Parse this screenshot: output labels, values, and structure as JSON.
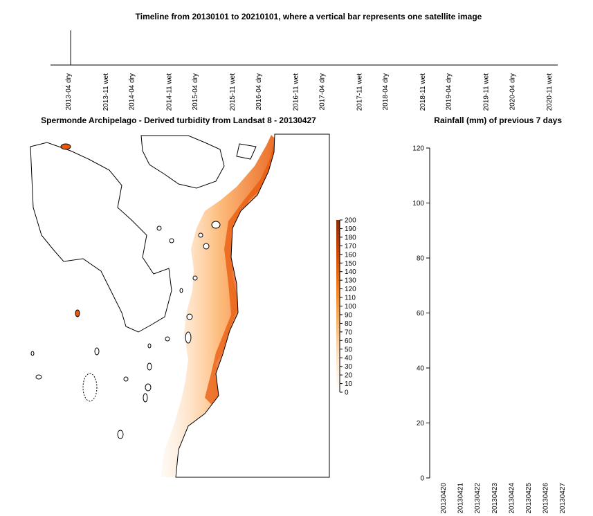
{
  "chart_data": [
    {
      "type": "timeline",
      "title": "Timeline from 20130101 to 20210101, where a vertical bar represents one satellite image",
      "x_range": [
        "2013-01-01",
        "2021-01-01"
      ],
      "tick_labels": [
        {
          "date": "2013-04-15",
          "label": "2013-04 dry"
        },
        {
          "date": "2013-11-15",
          "label": "2013-11 wet"
        },
        {
          "date": "2014-04-15",
          "label": "2014-04 dry"
        },
        {
          "date": "2014-11-15",
          "label": "2014-11 wet"
        },
        {
          "date": "2015-04-15",
          "label": "2015-04 dry"
        },
        {
          "date": "2015-11-15",
          "label": "2015-11 wet"
        },
        {
          "date": "2016-04-15",
          "label": "2016-04 dry"
        },
        {
          "date": "2016-11-15",
          "label": "2016-11 wet"
        },
        {
          "date": "2017-04-15",
          "label": "2017-04 dry"
        },
        {
          "date": "2017-11-15",
          "label": "2017-11 wet"
        },
        {
          "date": "2018-04-15",
          "label": "2018-04 dry"
        },
        {
          "date": "2018-11-15",
          "label": "2018-11 wet"
        },
        {
          "date": "2019-04-15",
          "label": "2019-04 dry"
        },
        {
          "date": "2019-11-15",
          "label": "2019-11 wet"
        },
        {
          "date": "2020-04-15",
          "label": "2020-04 dry"
        },
        {
          "date": "2020-11-15",
          "label": "2020-11 wet"
        }
      ],
      "images": [
        "2013-04-27"
      ]
    },
    {
      "type": "heatmap",
      "title": "Spermonde Archipelago - Derived turbidity from Landsat 8 - 20130427",
      "colorbar": {
        "min": 0,
        "max": 200,
        "step": 10,
        "ticks": [
          "0",
          "10",
          "20",
          "30",
          "40",
          "50",
          "60",
          "70",
          "80",
          "90",
          "100",
          "110",
          "120",
          "130",
          "140",
          "150",
          "160",
          "170",
          "180",
          "190",
          "200"
        ],
        "colors": [
          "#ffffff",
          "#fde3c8",
          "#fdb56e",
          "#f5801c",
          "#d94801",
          "#8c2d04"
        ]
      }
    },
    {
      "type": "bar",
      "title": "Rainfall (mm) of previous 7 days",
      "categories": [
        "20130420",
        "20130421",
        "20130422",
        "20130423",
        "20130424",
        "20130425",
        "20130426",
        "20130427"
      ],
      "values": [
        0,
        0,
        0,
        0,
        0,
        0,
        0,
        0
      ],
      "ylim": [
        0,
        120
      ],
      "yticks": [
        "0",
        "20",
        "40",
        "60",
        "80",
        "100",
        "120"
      ]
    }
  ]
}
